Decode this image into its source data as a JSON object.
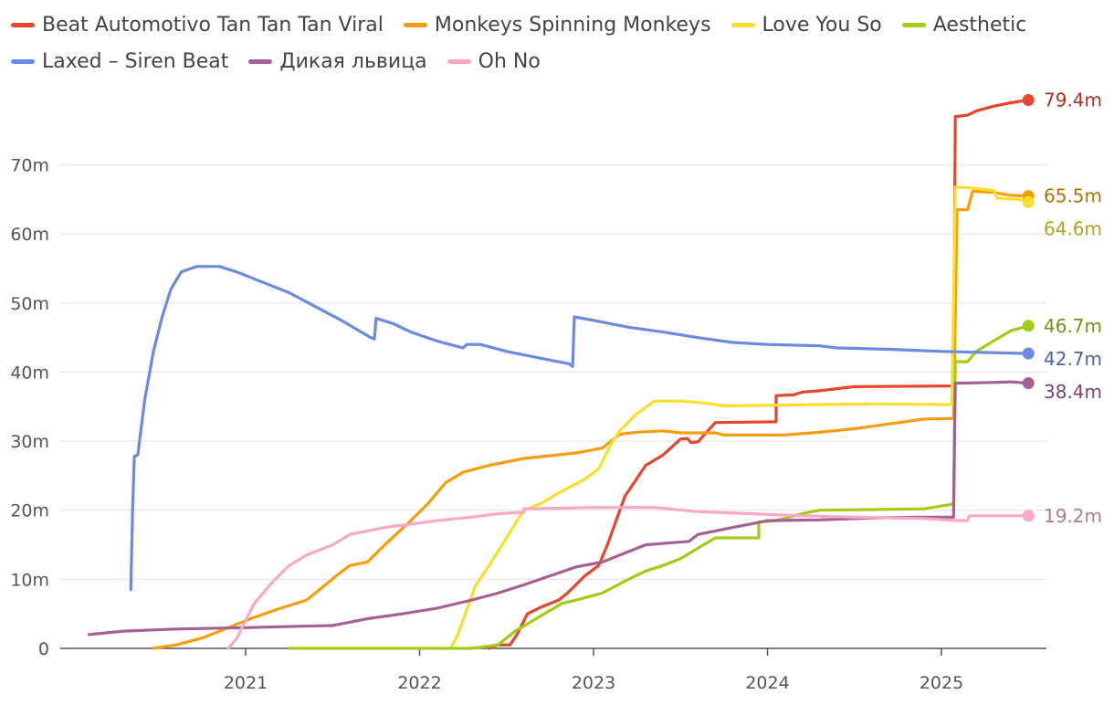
{
  "chart_data": {
    "type": "line",
    "title": "",
    "xlabel": "",
    "ylabel": "",
    "xlim": [
      2020.0,
      2025.6
    ],
    "ylim": [
      0,
      80
    ],
    "x_ticks": [
      2021,
      2022,
      2023,
      2024,
      2025
    ],
    "x_tick_labels": [
      "2021",
      "2022",
      "2023",
      "2024",
      "2025"
    ],
    "y_ticks": [
      0,
      10,
      20,
      30,
      40,
      50,
      60,
      70
    ],
    "y_tick_labels": [
      "0",
      "10m",
      "20m",
      "30m",
      "40m",
      "50m",
      "60m",
      "70m"
    ],
    "grid": "horizontal",
    "legend_position": "top",
    "series": [
      {
        "name": "Beat Automotivo Tan Tan Tan Viral",
        "color": "#e8452e",
        "end_label": "79.4m",
        "points": [
          [
            2022.4,
            0
          ],
          [
            2022.45,
            0.5
          ],
          [
            2022.52,
            0.5
          ],
          [
            2022.56,
            2
          ],
          [
            2022.62,
            5
          ],
          [
            2022.7,
            6
          ],
          [
            2022.8,
            7
          ],
          [
            2022.85,
            8
          ],
          [
            2022.95,
            10.5
          ],
          [
            2023.03,
            12
          ],
          [
            2023.08,
            15
          ],
          [
            2023.18,
            22
          ],
          [
            2023.3,
            26.5
          ],
          [
            2023.4,
            28
          ],
          [
            2023.5,
            30.3
          ],
          [
            2023.54,
            30.4
          ],
          [
            2023.56,
            29.8
          ],
          [
            2023.6,
            29.9
          ],
          [
            2023.7,
            32.7
          ],
          [
            2024.05,
            32.8
          ],
          [
            2024.05,
            36.6
          ],
          [
            2024.15,
            36.7
          ],
          [
            2024.2,
            37.1
          ],
          [
            2024.3,
            37.3
          ],
          [
            2024.5,
            37.9
          ],
          [
            2025.07,
            38
          ],
          [
            2025.08,
            77
          ],
          [
            2025.15,
            77.2
          ],
          [
            2025.2,
            77.8
          ],
          [
            2025.3,
            78.5
          ],
          [
            2025.4,
            79
          ],
          [
            2025.5,
            79.4
          ]
        ]
      },
      {
        "name": "Monkeys Spinning Monkeys",
        "color": "#f59e0b",
        "end_label": "65.5m",
        "points": [
          [
            2020.47,
            0
          ],
          [
            2020.6,
            0.5
          ],
          [
            2020.75,
            1.5
          ],
          [
            2020.9,
            3
          ],
          [
            2021.05,
            4.5
          ],
          [
            2021.2,
            5.8
          ],
          [
            2021.35,
            7
          ],
          [
            2021.45,
            9
          ],
          [
            2021.52,
            10.5
          ],
          [
            2021.6,
            12
          ],
          [
            2021.7,
            12.5
          ],
          [
            2021.8,
            15
          ],
          [
            2021.95,
            18.5
          ],
          [
            2022.05,
            21
          ],
          [
            2022.15,
            24
          ],
          [
            2022.25,
            25.5
          ],
          [
            2022.4,
            26.5
          ],
          [
            2022.6,
            27.5
          ],
          [
            2022.9,
            28.3
          ],
          [
            2023.05,
            29
          ],
          [
            2023.15,
            31
          ],
          [
            2023.25,
            31.3
          ],
          [
            2023.4,
            31.5
          ],
          [
            2023.5,
            31.2
          ],
          [
            2023.7,
            31.2
          ],
          [
            2023.75,
            30.9
          ],
          [
            2024.1,
            30.9
          ],
          [
            2024.3,
            31.3
          ],
          [
            2024.5,
            31.8
          ],
          [
            2024.7,
            32.5
          ],
          [
            2024.9,
            33.2
          ],
          [
            2025.07,
            33.3
          ],
          [
            2025.09,
            63.5
          ],
          [
            2025.15,
            63.5
          ],
          [
            2025.18,
            66.2
          ],
          [
            2025.3,
            66
          ],
          [
            2025.4,
            65.6
          ],
          [
            2025.5,
            65.5
          ]
        ]
      },
      {
        "name": "Love You So",
        "color": "#fadf2c",
        "end_label": "64.6m",
        "points": [
          [
            2022.18,
            0
          ],
          [
            2022.22,
            2
          ],
          [
            2022.27,
            5.5
          ],
          [
            2022.32,
            9
          ],
          [
            2022.4,
            12
          ],
          [
            2022.5,
            16
          ],
          [
            2022.56,
            18.5
          ],
          [
            2022.6,
            20
          ],
          [
            2022.7,
            21
          ],
          [
            2022.8,
            22.5
          ],
          [
            2022.95,
            24.5
          ],
          [
            2023.03,
            26
          ],
          [
            2023.1,
            29.5
          ],
          [
            2023.15,
            31.5
          ],
          [
            2023.25,
            34
          ],
          [
            2023.35,
            35.8
          ],
          [
            2023.5,
            35.8
          ],
          [
            2023.65,
            35.5
          ],
          [
            2023.75,
            35.1
          ],
          [
            2024.0,
            35.2
          ],
          [
            2024.3,
            35.3
          ],
          [
            2024.6,
            35.4
          ],
          [
            2025.06,
            35.3
          ],
          [
            2025.08,
            66.8
          ],
          [
            2025.2,
            66.6
          ],
          [
            2025.3,
            66.3
          ],
          [
            2025.32,
            65.2
          ],
          [
            2025.45,
            65
          ],
          [
            2025.5,
            64.6
          ]
        ]
      },
      {
        "name": "Aesthetic",
        "color": "#a3cc16",
        "end_label": "46.7m",
        "points": [
          [
            2021.25,
            0
          ],
          [
            2022.3,
            0
          ],
          [
            2022.45,
            0.5
          ],
          [
            2022.55,
            2.5
          ],
          [
            2022.65,
            4
          ],
          [
            2022.75,
            5.5
          ],
          [
            2022.82,
            6.5
          ],
          [
            2022.9,
            7
          ],
          [
            2023.05,
            8
          ],
          [
            2023.2,
            10
          ],
          [
            2023.3,
            11.2
          ],
          [
            2023.4,
            12
          ],
          [
            2023.5,
            13
          ],
          [
            2023.6,
            14.5
          ],
          [
            2023.7,
            16
          ],
          [
            2023.95,
            16
          ],
          [
            2023.95,
            18.3
          ],
          [
            2024.05,
            18.5
          ],
          [
            2024.2,
            19.5
          ],
          [
            2024.3,
            20
          ],
          [
            2024.6,
            20.1
          ],
          [
            2024.9,
            20.2
          ],
          [
            2025.07,
            20.9
          ],
          [
            2025.08,
            41.5
          ],
          [
            2025.15,
            41.5
          ],
          [
            2025.2,
            43
          ],
          [
            2025.3,
            44.5
          ],
          [
            2025.4,
            46
          ],
          [
            2025.5,
            46.7
          ]
        ]
      },
      {
        "name": "Laxed – Siren Beat",
        "color": "#6b8ae0",
        "end_label": "42.7m",
        "points": [
          [
            2020.34,
            8.5
          ],
          [
            2020.35,
            20
          ],
          [
            2020.36,
            27.8
          ],
          [
            2020.38,
            28
          ],
          [
            2020.42,
            36
          ],
          [
            2020.47,
            43
          ],
          [
            2020.52,
            48
          ],
          [
            2020.57,
            52
          ],
          [
            2020.63,
            54.5
          ],
          [
            2020.72,
            55.3
          ],
          [
            2020.85,
            55.3
          ],
          [
            2020.95,
            54.5
          ],
          [
            2021.1,
            53
          ],
          [
            2021.25,
            51.5
          ],
          [
            2021.4,
            49.5
          ],
          [
            2021.55,
            47.5
          ],
          [
            2021.72,
            45
          ],
          [
            2021.74,
            44.8
          ],
          [
            2021.75,
            47.8
          ],
          [
            2021.85,
            47
          ],
          [
            2021.95,
            45.8
          ],
          [
            2022.1,
            44.5
          ],
          [
            2022.25,
            43.5
          ],
          [
            2022.27,
            44
          ],
          [
            2022.35,
            44
          ],
          [
            2022.5,
            43
          ],
          [
            2022.7,
            42
          ],
          [
            2022.86,
            41.2
          ],
          [
            2022.88,
            40.8
          ],
          [
            2022.89,
            48
          ],
          [
            2023.0,
            47.5
          ],
          [
            2023.2,
            46.5
          ],
          [
            2023.4,
            45.8
          ],
          [
            2023.6,
            45
          ],
          [
            2023.8,
            44.3
          ],
          [
            2024.0,
            44
          ],
          [
            2024.3,
            43.8
          ],
          [
            2024.4,
            43.5
          ],
          [
            2024.7,
            43.3
          ],
          [
            2025.0,
            43
          ],
          [
            2025.5,
            42.7
          ]
        ]
      },
      {
        "name": "Дикая львица",
        "color": "#a56194",
        "end_label": "38.4m",
        "points": [
          [
            2020.1,
            2
          ],
          [
            2020.3,
            2.5
          ],
          [
            2020.6,
            2.8
          ],
          [
            2021.0,
            3
          ],
          [
            2021.3,
            3.2
          ],
          [
            2021.5,
            3.3
          ],
          [
            2021.6,
            3.8
          ],
          [
            2021.7,
            4.3
          ],
          [
            2021.9,
            5
          ],
          [
            2022.1,
            5.8
          ],
          [
            2022.3,
            7
          ],
          [
            2022.45,
            8
          ],
          [
            2022.6,
            9.2
          ],
          [
            2022.75,
            10.5
          ],
          [
            2022.9,
            11.8
          ],
          [
            2023.05,
            12.5
          ],
          [
            2023.2,
            14
          ],
          [
            2023.3,
            15
          ],
          [
            2023.45,
            15.3
          ],
          [
            2023.55,
            15.5
          ],
          [
            2023.6,
            16.5
          ],
          [
            2023.7,
            17
          ],
          [
            2023.8,
            17.5
          ],
          [
            2023.9,
            18
          ],
          [
            2024.0,
            18.5
          ],
          [
            2024.3,
            18.6
          ],
          [
            2024.6,
            18.9
          ],
          [
            2024.9,
            19
          ],
          [
            2025.07,
            19
          ],
          [
            2025.08,
            38.4
          ],
          [
            2025.3,
            38.5
          ],
          [
            2025.4,
            38.6
          ],
          [
            2025.5,
            38.4
          ]
        ]
      },
      {
        "name": "Oh No",
        "color": "#f9a8c8",
        "end_label": "19.2m",
        "points": [
          [
            2020.9,
            0
          ],
          [
            2020.95,
            1.5
          ],
          [
            2021.0,
            4
          ],
          [
            2021.05,
            6.5
          ],
          [
            2021.15,
            9.5
          ],
          [
            2021.25,
            12
          ],
          [
            2021.35,
            13.5
          ],
          [
            2021.5,
            15
          ],
          [
            2021.6,
            16.5
          ],
          [
            2021.7,
            17
          ],
          [
            2021.8,
            17.5
          ],
          [
            2021.95,
            18
          ],
          [
            2022.1,
            18.5
          ],
          [
            2022.3,
            19
          ],
          [
            2022.45,
            19.5
          ],
          [
            2022.6,
            19.7
          ],
          [
            2022.6,
            20.2
          ],
          [
            2022.8,
            20.3
          ],
          [
            2023.0,
            20.4
          ],
          [
            2023.35,
            20.4
          ],
          [
            2023.6,
            19.8
          ],
          [
            2023.9,
            19.5
          ],
          [
            2024.2,
            19.2
          ],
          [
            2024.5,
            19
          ],
          [
            2024.9,
            18.8
          ],
          [
            2025.1,
            18.5
          ],
          [
            2025.15,
            18.5
          ],
          [
            2025.16,
            19.2
          ],
          [
            2025.5,
            19.2
          ]
        ]
      }
    ]
  }
}
